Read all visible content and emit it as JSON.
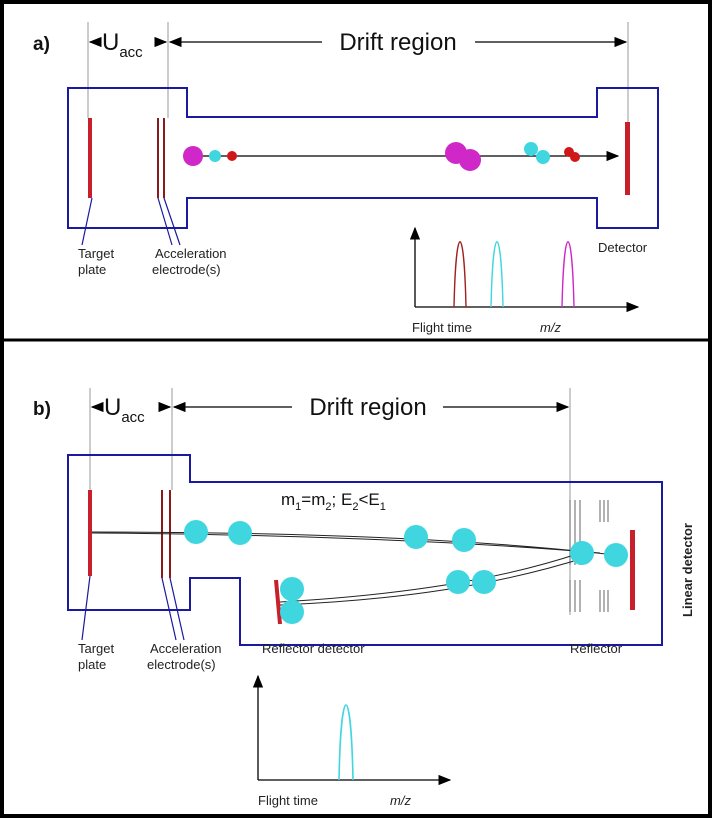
{
  "panels": [
    {
      "label": "a)",
      "u": "U",
      "u_sub": "acc",
      "drift": "Drift region",
      "target": [
        "Target",
        "plate"
      ],
      "electrodes": [
        "Acceleration",
        "electrode(s)"
      ],
      "detector": "Detector",
      "flight_time": "Flight time",
      "mz": "m/z"
    },
    {
      "label": "b)",
      "u": "U",
      "u_sub": "acc",
      "drift": "Drift region",
      "condition": [
        "m",
        "1",
        "=m",
        "2",
        "; E",
        "2",
        "<E",
        "1"
      ],
      "target": [
        "Target",
        "plate"
      ],
      "electrodes": [
        "Acceleration",
        "electrode(s)"
      ],
      "reflector_detector": "Reflector detector",
      "reflector": "Reflector",
      "linear_detector": "Linear detector",
      "flight_time": "Flight time",
      "mz": "m/z"
    }
  ]
}
